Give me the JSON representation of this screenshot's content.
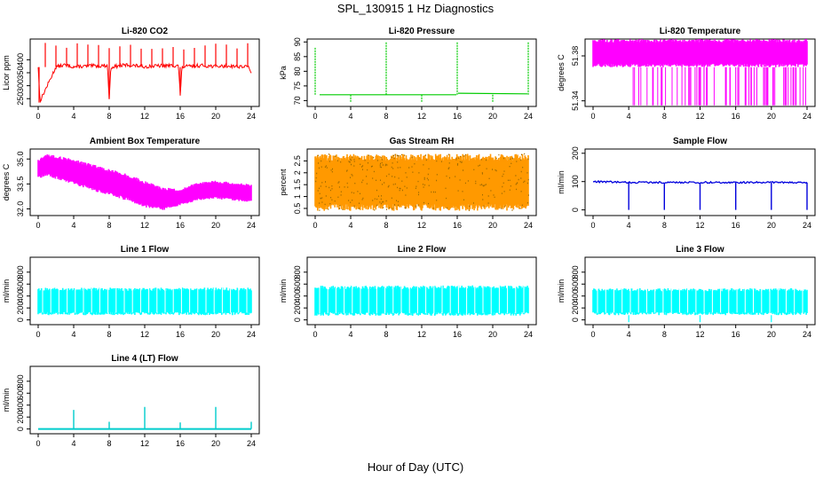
{
  "figure": {
    "title": "SPL_130915  1 Hz Diagnostics",
    "xlabel": "Hour of Day (UTC)"
  },
  "chart_data": [
    {
      "type": "line",
      "title": "Li-820 CO2",
      "ylabel": "Licor ppm",
      "color": "#ff0000",
      "xlim": [
        0,
        24
      ],
      "ylim": [
        220,
        480
      ],
      "xticks": [
        0,
        4,
        8,
        12,
        16,
        20,
        24
      ],
      "yticks": [
        250,
        300,
        350,
        400
      ],
      "series": [
        {
          "x": [
            0,
            0.2,
            2,
            3,
            4,
            6,
            7.8,
            8,
            8.2,
            10,
            12,
            14,
            15.8,
            16,
            16.2,
            18,
            20,
            22,
            23.8,
            24
          ],
          "y": [
            375,
            240,
            372,
            380,
            373,
            376,
            378,
            250,
            372,
            380,
            374,
            377,
            378,
            262,
            372,
            378,
            375,
            376,
            372,
            345
          ]
        }
      ],
      "notes": [
        "periodic spikes near 460 ppm",
        "drop to 250 at hour 8",
        "drop to 262 at hour 16"
      ]
    },
    {
      "type": "line",
      "title": "Li-820 Pressure",
      "ylabel": "kPa",
      "color": "#00cc00",
      "xlim": [
        0,
        24
      ],
      "ylim": [
        68,
        91
      ],
      "xticks": [
        0,
        4,
        8,
        12,
        16,
        20,
        24
      ],
      "yticks": [
        70,
        75,
        80,
        85,
        90
      ],
      "series": [
        {
          "x": [
            0,
            0.5,
            4,
            8,
            12,
            15.9,
            16,
            16.1,
            20,
            23.9,
            24
          ],
          "y": [
            88,
            72,
            72,
            72,
            72,
            72.5,
            90,
            72.5,
            72.3,
            72.3,
            90
          ]
        }
      ]
    },
    {
      "type": "area",
      "title": "Li-820 Temperature",
      "ylabel": "degrees C",
      "color": "#ff00ff",
      "xlim": [
        0,
        24
      ],
      "ylim": [
        51.335,
        51.395
      ],
      "xticks": [
        0,
        4,
        8,
        12,
        16,
        20,
        24
      ],
      "yticks": [
        51.34,
        51.38
      ],
      "series": [
        {
          "x": [
            0,
            24
          ],
          "upper": [
            51.395,
            51.395
          ],
          "lower": [
            51.37,
            51.37
          ]
        }
      ],
      "notes": [
        "frequent drops to 51.34 after hour 4"
      ]
    },
    {
      "type": "area",
      "title": "Ambient Box Temperature",
      "ylabel": "degrees C",
      "color": "#ff00ff",
      "xlim": [
        0,
        24
      ],
      "ylim": [
        31.6,
        35.6
      ],
      "xticks": [
        0,
        4,
        8,
        12,
        16,
        20,
        24
      ],
      "yticks": [
        32.0,
        33.5,
        35.0
      ],
      "series": [
        {
          "x": [
            0,
            1,
            2,
            4,
            6,
            8,
            10,
            12,
            14,
            16,
            18,
            20,
            22,
            24
          ],
          "upper": [
            35.0,
            35.3,
            35.2,
            35.0,
            34.7,
            34.4,
            34.1,
            33.7,
            33.3,
            33.2,
            33.6,
            33.7,
            33.6,
            33.5
          ],
          "lower": [
            33.8,
            34.0,
            33.8,
            33.5,
            33.1,
            32.8,
            32.5,
            32.1,
            31.9,
            32.2,
            32.5,
            32.6,
            32.5,
            32.4
          ]
        }
      ]
    },
    {
      "type": "area",
      "title": "Gas Stream RH",
      "ylabel": "percent",
      "color": "#ff9900",
      "xlim": [
        0,
        24
      ],
      "ylim": [
        0.2,
        3.0
      ],
      "xticks": [
        0,
        4,
        8,
        12,
        16,
        20,
        24
      ],
      "yticks": [
        0.5,
        1.0,
        1.5,
        2.0,
        2.5
      ],
      "series": [
        {
          "x": [
            0,
            24
          ],
          "upper": [
            2.8,
            2.8
          ],
          "lower": [
            0.4,
            0.4
          ]
        }
      ]
    },
    {
      "type": "line",
      "title": "Sample Flow",
      "ylabel": "ml/min",
      "color": "#0000dd",
      "xlim": [
        0,
        24
      ],
      "ylim": [
        -20,
        215
      ],
      "xticks": [
        0,
        4,
        8,
        12,
        16,
        20,
        24
      ],
      "yticks": [
        0,
        100,
        200
      ],
      "series": [
        {
          "x": [
            0,
            4,
            8,
            12,
            16,
            20,
            24
          ],
          "y": [
            100,
            97,
            97,
            97,
            97,
            97,
            96
          ]
        }
      ],
      "notes": [
        "dips to 0 at hours 4, 8, 12, 16, 20, 24"
      ]
    },
    {
      "type": "area",
      "title": "Line 1 Flow",
      "ylabel": "ml/min",
      "color": "#00ffff",
      "xlim": [
        0,
        24
      ],
      "ylim": [
        -80,
        1050
      ],
      "xticks": [
        0,
        4,
        8,
        12,
        16,
        20,
        24
      ],
      "yticks": [
        0,
        200,
        400,
        600,
        800
      ],
      "series": [
        {
          "x": [
            0,
            24
          ],
          "upper": [
            540,
            540
          ],
          "lower": [
            80,
            80
          ]
        }
      ]
    },
    {
      "type": "area",
      "title": "Line 2 Flow",
      "ylabel": "ml/min",
      "color": "#00ffff",
      "xlim": [
        0,
        24
      ],
      "ylim": [
        -80,
        1050
      ],
      "xticks": [
        0,
        4,
        8,
        12,
        16,
        20,
        24
      ],
      "yticks": [
        0,
        200,
        400,
        600,
        800
      ],
      "series": [
        {
          "x": [
            0,
            24
          ],
          "upper": [
            570,
            580
          ],
          "lower": [
            70,
            70
          ]
        }
      ]
    },
    {
      "type": "area",
      "title": "Line 3 Flow",
      "ylabel": "ml/min",
      "color": "#00ffff",
      "xlim": [
        0,
        24
      ],
      "ylim": [
        -80,
        1050
      ],
      "xticks": [
        0,
        4,
        8,
        12,
        16,
        20,
        24
      ],
      "yticks": [
        0,
        200,
        400,
        600,
        800
      ],
      "series": [
        {
          "x": [
            0,
            24
          ],
          "upper": [
            530,
            530
          ],
          "lower": [
            80,
            80
          ]
        }
      ],
      "notes": [
        "dips below 0 near hours 4, 12, 20"
      ]
    },
    {
      "type": "line",
      "title": "Line 4 (LT) Flow",
      "ylabel": "ml/min",
      "color": "#00cccc",
      "xlim": [
        0,
        24
      ],
      "ylim": [
        -80,
        1050
      ],
      "xticks": [
        0,
        4,
        8,
        12,
        16,
        20,
        24
      ],
      "yticks": [
        0,
        200,
        400,
        600,
        800
      ],
      "series": [
        {
          "x": [
            0,
            4,
            8,
            12,
            16,
            20,
            24
          ],
          "y": [
            0,
            320,
            120,
            370,
            110,
            370,
            120
          ]
        }
      ],
      "notes": [
        "baseline near 0 with spikes at 4, 8, 12, 16, 20, 24"
      ]
    }
  ]
}
